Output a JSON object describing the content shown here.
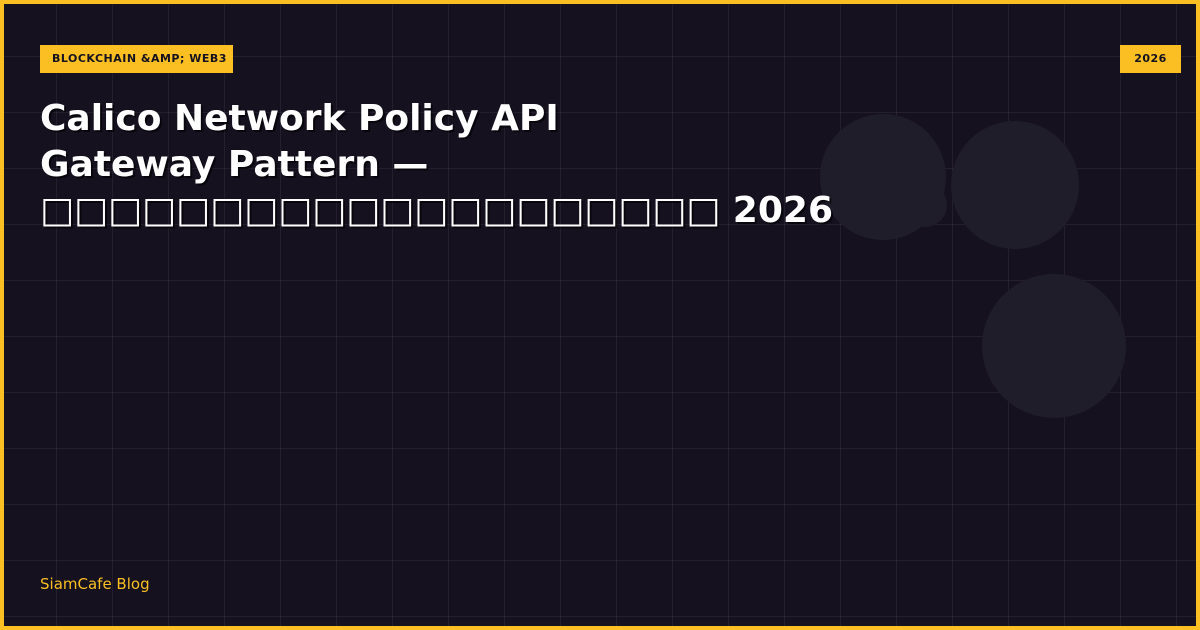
{
  "header": {
    "category": "BLOCKCHAIN &AMP; WEB3",
    "year": "2026"
  },
  "title": {
    "lines": [
      "Calico Network Policy API",
      "Gateway Pattern —",
      "□□□□□□□□□□□□□□□□□□□□ 2026"
    ]
  },
  "footer": {
    "site": "SiamCafe Blog"
  }
}
